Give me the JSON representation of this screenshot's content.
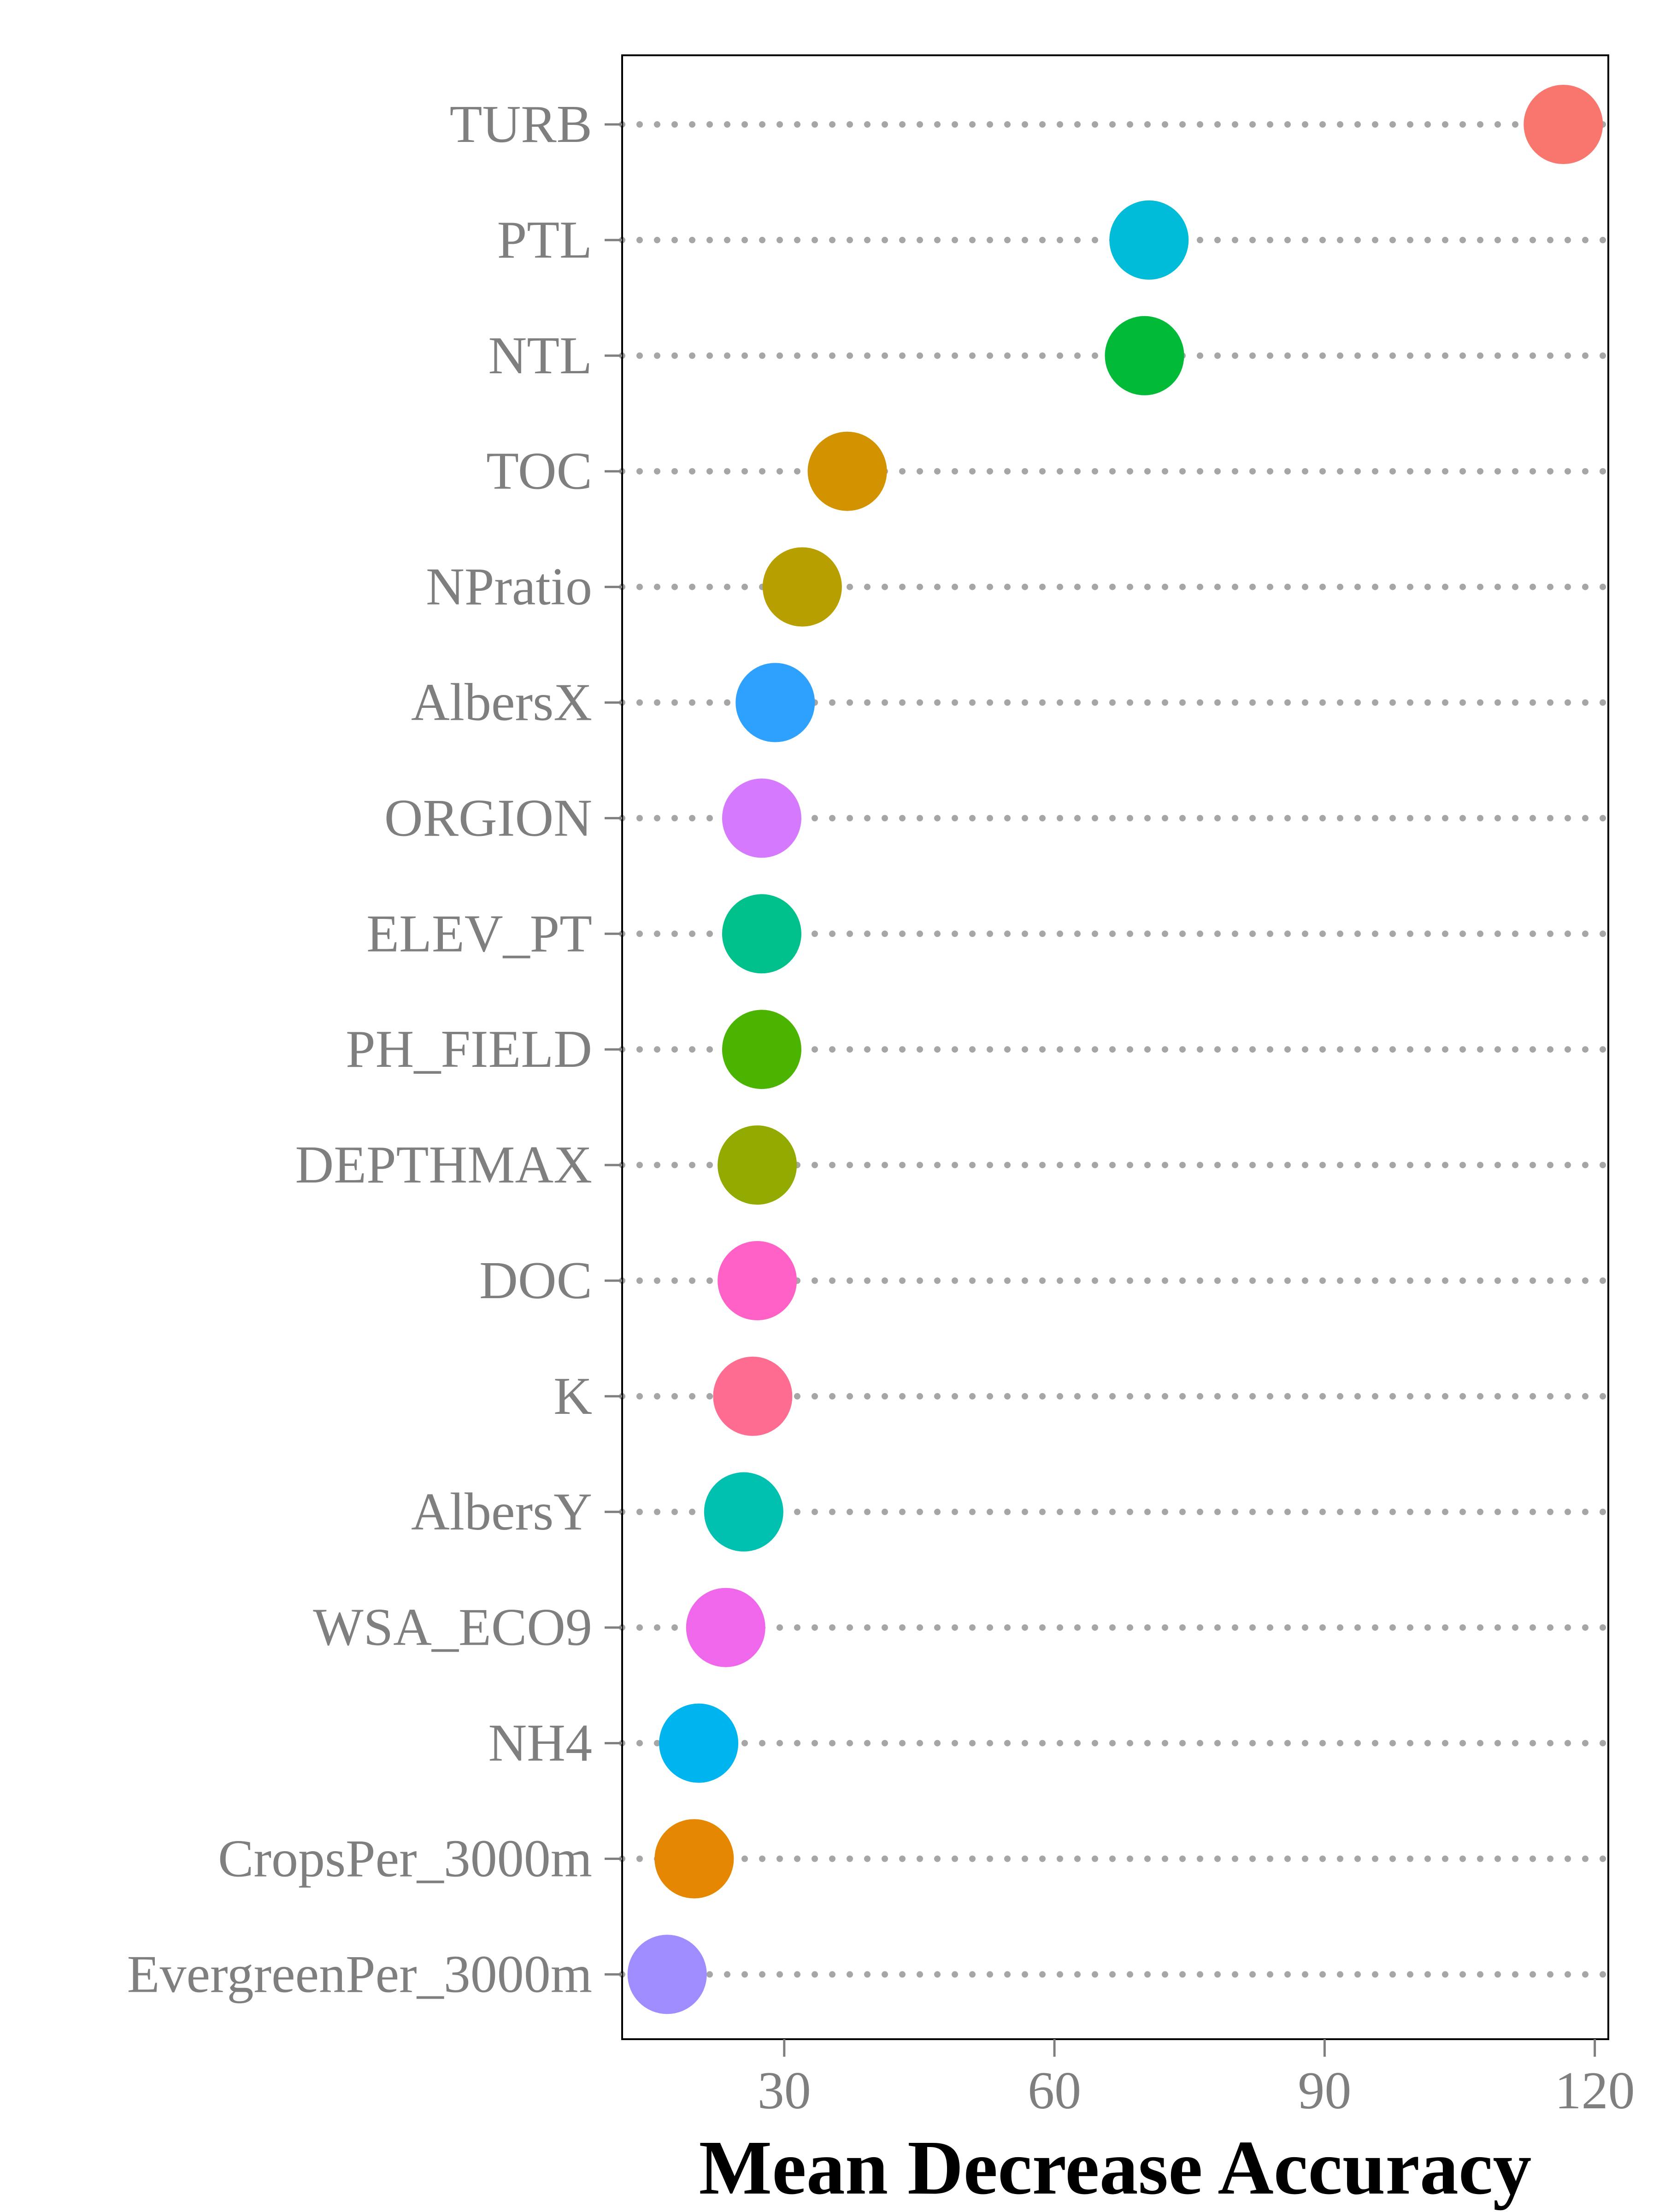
{
  "chart_data": {
    "type": "scatter",
    "title": "",
    "xlabel": "Mean Decrease Accuracy",
    "ylabel": "",
    "xlim": [
      12,
      121.5
    ],
    "xticks": [
      30,
      60,
      90,
      120
    ],
    "xtick_labels": [
      "30",
      "60",
      "90",
      "120"
    ],
    "grid": "horizontal dotted guide line per category",
    "legend": "none",
    "categories": [
      "TURB",
      "PTL",
      "NTL",
      "TOC",
      "NPratio",
      "AlbersX",
      "ORGION",
      "ELEV_PT",
      "PH_FIELD",
      "DEPTHMAX",
      "DOC",
      "K",
      "AlbersY",
      "WSA_ECO9",
      "NH4",
      "CropsPer_3000m",
      "EvergreenPer_3000m"
    ],
    "values": [
      116.5,
      70.5,
      70.0,
      37.0,
      32.0,
      29.0,
      27.5,
      27.5,
      27.5,
      27.0,
      27.0,
      26.5,
      25.5,
      23.5,
      20.5,
      20.0,
      17.0
    ],
    "colors": [
      "#F8766D",
      "#00BCD8",
      "#00BA38",
      "#D39200",
      "#B79F00",
      "#2EA1FF",
      "#D57AFF",
      "#00C08B",
      "#4BB400",
      "#93AA00",
      "#FF61C6",
      "#FF6C91",
      "#00C0AF",
      "#EF67EB",
      "#00B4F0",
      "#E58700",
      "#9F8CFF"
    ]
  }
}
